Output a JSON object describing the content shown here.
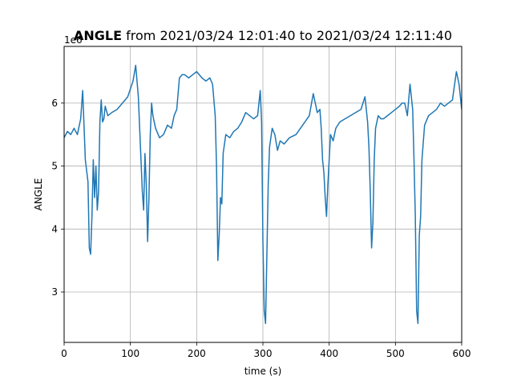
{
  "chart_data": {
    "type": "line",
    "title_bold": "ANGLE",
    "title_rest": " from 2021/03/24 12:01:40 to 2021/03/24 12:11:40",
    "xlabel": "time (s)",
    "ylabel": "ANGLE",
    "offset_label": "1e6",
    "xlim": [
      0,
      600
    ],
    "ylim": [
      2200000,
      6900000
    ],
    "xticks": [
      0,
      100,
      200,
      300,
      400,
      500,
      600
    ],
    "yticks": [
      3000000,
      4000000,
      5000000,
      6000000
    ],
    "xtick_labels": [
      "0",
      "100",
      "200",
      "300",
      "400",
      "500",
      "600"
    ],
    "ytick_labels": [
      "3",
      "4",
      "5",
      "6"
    ],
    "grid": true,
    "line_color": "#1f77b4",
    "series": [
      {
        "x": [
          0,
          5,
          10,
          15,
          20,
          25,
          28,
          32,
          36,
          38,
          40,
          42,
          44,
          46,
          48,
          50,
          52,
          54,
          56,
          58,
          60,
          62,
          66,
          72,
          80,
          88,
          96,
          104,
          108,
          112,
          116,
          118,
          120,
          122,
          124,
          126,
          128,
          130,
          132,
          134,
          138,
          144,
          150,
          156,
          162,
          166,
          170,
          174,
          178,
          182,
          188,
          194,
          200,
          208,
          214,
          220,
          224,
          228,
          230,
          232,
          234,
          236,
          238,
          240,
          244,
          250,
          256,
          262,
          268,
          274,
          280,
          286,
          292,
          296,
          298,
          300,
          302,
          304,
          306,
          308,
          310,
          314,
          318,
          322,
          326,
          332,
          340,
          350,
          360,
          370,
          376,
          382,
          386,
          388,
          390,
          392,
          394,
          396,
          398,
          402,
          406,
          410,
          416,
          424,
          432,
          440,
          448,
          454,
          458,
          460,
          462,
          464,
          466,
          468,
          470,
          474,
          478,
          482,
          488,
          494,
          500,
          506,
          510,
          514,
          518,
          522,
          526,
          528,
          530,
          532,
          534,
          536,
          538,
          540,
          544,
          550,
          556,
          562,
          568,
          574,
          580,
          586,
          592,
          596,
          600
        ],
        "y": [
          5450000,
          5550000,
          5500000,
          5600000,
          5500000,
          5750000,
          6200000,
          5100000,
          4750000,
          3700000,
          3600000,
          4200000,
          5100000,
          4500000,
          5000000,
          4300000,
          4600000,
          5700000,
          6050000,
          5700000,
          5750000,
          5950000,
          5800000,
          5850000,
          5900000,
          6000000,
          6100000,
          6350000,
          6600000,
          6100000,
          5100000,
          4600000,
          4300000,
          5200000,
          4700000,
          3800000,
          4500000,
          5500000,
          6000000,
          5800000,
          5600000,
          5450000,
          5500000,
          5650000,
          5600000,
          5800000,
          5900000,
          6400000,
          6450000,
          6450000,
          6400000,
          6450000,
          6500000,
          6400000,
          6350000,
          6400000,
          6300000,
          5800000,
          5000000,
          3500000,
          3900000,
          4500000,
          4400000,
          5200000,
          5500000,
          5450000,
          5550000,
          5600000,
          5700000,
          5850000,
          5800000,
          5750000,
          5800000,
          6200000,
          5700000,
          3800000,
          2700000,
          2500000,
          3600000,
          4700000,
          5300000,
          5600000,
          5500000,
          5250000,
          5400000,
          5350000,
          5450000,
          5500000,
          5650000,
          5800000,
          6150000,
          5850000,
          5900000,
          5600000,
          5100000,
          4900000,
          4500000,
          4200000,
          4700000,
          5500000,
          5400000,
          5600000,
          5700000,
          5750000,
          5800000,
          5850000,
          5900000,
          6100000,
          5700000,
          5300000,
          4600000,
          3700000,
          4100000,
          5100000,
          5600000,
          5800000,
          5750000,
          5750000,
          5800000,
          5850000,
          5900000,
          5950000,
          6000000,
          6000000,
          5800000,
          6300000,
          5900000,
          5100000,
          4200000,
          2700000,
          2500000,
          3900000,
          4200000,
          5100000,
          5650000,
          5800000,
          5850000,
          5900000,
          6000000,
          5950000,
          6000000,
          6050000,
          6500000,
          6300000,
          5900000
        ]
      }
    ]
  }
}
